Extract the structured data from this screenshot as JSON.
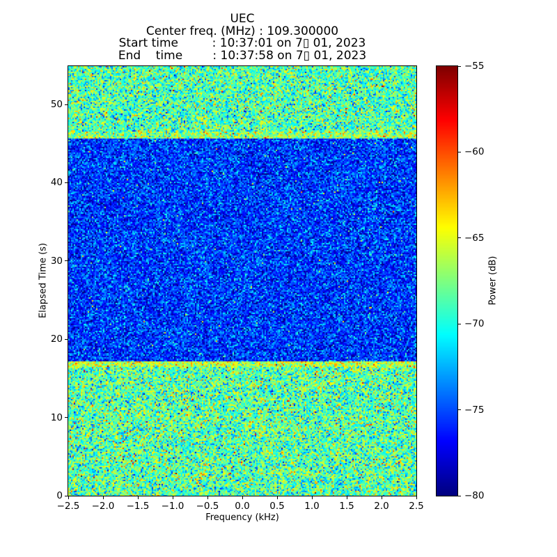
{
  "chart_data": {
    "type": "heatmap",
    "title": "UEC",
    "header_lines": [
      "Center freq. (MHz) : 109.300000",
      "Start time         : 10:37:01 on 7▯ 01, 2023",
      "End    time        : 10:37:58 on 7▯ 01, 2023"
    ],
    "xlabel": "Frequency (kHz)",
    "ylabel": "Elapsed Time (s)",
    "colorbar_label": "Power (dB)",
    "colormap": "jet",
    "grid": false,
    "legend": "none",
    "xlim": [
      -2.5,
      2.5
    ],
    "ylim": [
      0,
      54.9
    ],
    "clim_db": [
      -80,
      -55
    ],
    "x_ticks": [
      {
        "v": -2.5,
        "label": "−2.5"
      },
      {
        "v": -2.0,
        "label": "−2.0"
      },
      {
        "v": -1.5,
        "label": "−1.5"
      },
      {
        "v": -1.0,
        "label": "−1.0"
      },
      {
        "v": -0.5,
        "label": "−0.5"
      },
      {
        "v": 0.0,
        "label": "0.0"
      },
      {
        "v": 0.5,
        "label": "0.5"
      },
      {
        "v": 1.0,
        "label": "1.0"
      },
      {
        "v": 1.5,
        "label": "1.5"
      },
      {
        "v": 2.0,
        "label": "2.0"
      },
      {
        "v": 2.5,
        "label": "2.5"
      }
    ],
    "y_ticks": [
      {
        "v": 0,
        "label": "0"
      },
      {
        "v": 10,
        "label": "10"
      },
      {
        "v": 20,
        "label": "20"
      },
      {
        "v": 30,
        "label": "30"
      },
      {
        "v": 40,
        "label": "40"
      },
      {
        "v": 50,
        "label": "50"
      }
    ],
    "colorbar_ticks": [
      {
        "v": -55,
        "label": "−55"
      },
      {
        "v": -60,
        "label": "−60"
      },
      {
        "v": -65,
        "label": "−65"
      },
      {
        "v": -70,
        "label": "−70"
      },
      {
        "v": -75,
        "label": "−75"
      },
      {
        "v": -80,
        "label": "−80"
      }
    ],
    "bands": [
      {
        "name": "signal-present-early",
        "t_start": 0,
        "t_end": 16.4,
        "mean_db": -68.5,
        "std_db": 3.0
      },
      {
        "name": "signal-absent-middle",
        "t_start": 17.2,
        "t_end": 45.6,
        "mean_db": -75.6,
        "std_db": 2.3
      },
      {
        "name": "signal-present-late",
        "t_start": 46.6,
        "t_end": 54.9,
        "mean_db": -68.8,
        "std_db": 2.9
      }
    ],
    "edge_stripes": [
      {
        "name": "bright-edge-17s",
        "t_start": 16.4,
        "t_end": 17.2,
        "mean_db": -66.0,
        "std_db": 2.4
      },
      {
        "name": "bright-edge-46s",
        "t_start": 45.6,
        "t_end": 46.6,
        "mean_db": -67.0,
        "std_db": 2.6
      }
    ]
  }
}
